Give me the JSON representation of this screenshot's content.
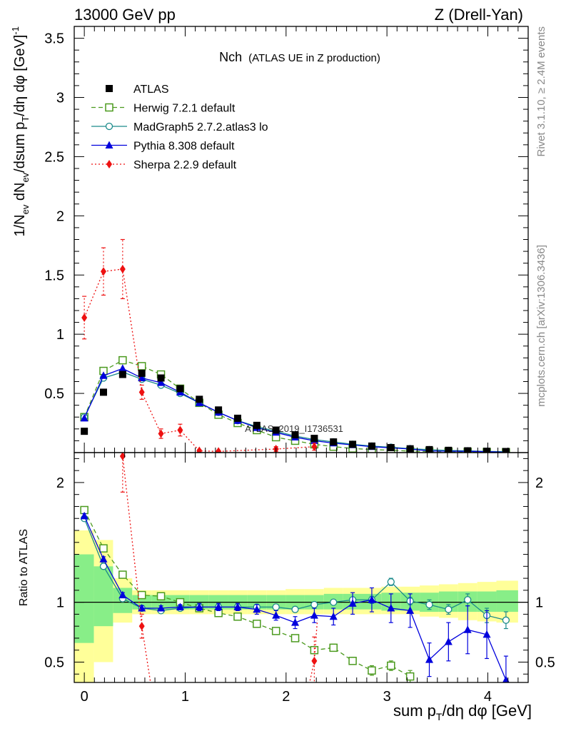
{
  "header": {
    "left": "13000 GeV pp",
    "right": "Z (Drell-Yan)"
  },
  "side_text": {
    "rivet": "Rivet 3.1.10, ≥ 2.4M events",
    "mcplots": "mcplots.cern.ch [arXiv:1306.3436]"
  },
  "watermark": "ATLAS_2019_I1736531",
  "colors": {
    "atlas": "#000000",
    "herwig": "#4b9a1e",
    "madgraph": "#1a8a8a",
    "pythia": "#0000dd",
    "sherpa": "#ee1111",
    "band_outer": "#ffff99",
    "band_inner": "#88ee88"
  },
  "chart_data": [
    {
      "type": "scatter",
      "panel": "main",
      "title": "Nch",
      "subtitle": "(ATLAS UE in Z production)",
      "ylabel": "1/N_ev dN_ev/dsum p_T/dη dφ [GeV]^-1",
      "xlabel": "sum p_T/dη dφ [GeV]",
      "xlim": [
        -0.1,
        4.4
      ],
      "ylim": [
        0,
        3.6
      ],
      "yticks": [
        "0.5",
        "1",
        "1.5",
        "2",
        "2.5",
        "3",
        "3.5"
      ],
      "xticks": [
        "0",
        "1",
        "2",
        "3",
        "4"
      ],
      "legend_position": "top-left",
      "series": [
        {
          "name": "ATLAS",
          "key": "atlas",
          "x": [
            0.0,
            0.19,
            0.38,
            0.57,
            0.76,
            0.95,
            1.14,
            1.33,
            1.52,
            1.71,
            1.9,
            2.09,
            2.28,
            2.47,
            2.66,
            2.85,
            3.04,
            3.23,
            3.42,
            3.61,
            3.8,
            3.99,
            4.18
          ],
          "y": [
            0.18,
            0.51,
            0.66,
            0.67,
            0.63,
            0.54,
            0.45,
            0.36,
            0.29,
            0.23,
            0.19,
            0.15,
            0.12,
            0.09,
            0.07,
            0.055,
            0.042,
            0.032,
            0.025,
            0.019,
            0.015,
            0.011,
            0.009
          ]
        },
        {
          "name": "Herwig 7.2.1 default",
          "key": "herwig",
          "x": [
            0.0,
            0.19,
            0.38,
            0.57,
            0.76,
            0.95,
            1.14,
            1.33,
            1.52,
            1.71,
            1.9,
            2.09,
            2.28,
            2.47,
            2.66,
            2.85,
            3.04,
            3.23,
            3.42,
            3.61,
            3.8,
            3.99,
            4.18
          ],
          "y": [
            0.3,
            0.69,
            0.78,
            0.73,
            0.66,
            0.54,
            0.42,
            0.32,
            0.25,
            0.19,
            0.13,
            0.1,
            0.07,
            0.05,
            0.035,
            0.025,
            0.02,
            0.012,
            0.01,
            0.008,
            0.006,
            0.005,
            0.004
          ]
        },
        {
          "name": "MadGraph5 2.7.2.atlas3 lo",
          "key": "madgraph",
          "x": [
            0.0,
            0.19,
            0.38,
            0.57,
            0.76,
            0.95,
            1.14,
            1.33,
            1.52,
            1.71,
            1.9,
            2.09,
            2.28,
            2.47,
            2.66,
            2.85,
            3.04,
            3.23,
            3.42,
            3.61,
            3.8,
            3.99,
            4.18
          ],
          "y": [
            0.3,
            0.63,
            0.68,
            0.62,
            0.57,
            0.5,
            0.42,
            0.34,
            0.27,
            0.22,
            0.18,
            0.14,
            0.11,
            0.09,
            0.07,
            0.055,
            0.045,
            0.033,
            0.025,
            0.018,
            0.015,
            0.01,
            0.008
          ]
        },
        {
          "name": "Pythia 8.308 default",
          "key": "pythia",
          "x": [
            0.0,
            0.19,
            0.38,
            0.57,
            0.76,
            0.95,
            1.14,
            1.33,
            1.52,
            1.71,
            1.9,
            2.09,
            2.28,
            2.47,
            2.66,
            2.85,
            3.04,
            3.23,
            3.42,
            3.61,
            3.8,
            3.99,
            4.18
          ],
          "y": [
            0.29,
            0.65,
            0.71,
            0.63,
            0.59,
            0.51,
            0.42,
            0.34,
            0.27,
            0.21,
            0.17,
            0.13,
            0.1,
            0.08,
            0.065,
            0.05,
            0.04,
            0.03,
            0.014,
            0.012,
            0.011,
            0.008,
            0.003
          ]
        },
        {
          "name": "Sherpa 2.2.9 default",
          "key": "sherpa",
          "x": [
            0.0,
            0.19,
            0.38,
            0.57,
            0.76,
            0.95,
            1.14,
            1.33,
            1.9,
            2.28
          ],
          "y": [
            1.14,
            1.53,
            1.55,
            0.51,
            0.16,
            0.19,
            0.015,
            0.01,
            0.03,
            0.05
          ],
          "yerr": [
            0.18,
            0.2,
            0.25,
            0.06,
            0.04,
            0.05,
            0.01,
            0.01,
            0.02,
            0.03
          ]
        }
      ]
    },
    {
      "type": "scatter",
      "panel": "ratio",
      "ylabel": "Ratio to ATLAS",
      "xlabel": "sum p_T/dη dφ [GeV]",
      "xlim": [
        -0.1,
        4.4
      ],
      "ylim": [
        0.33,
        2.25
      ],
      "yticks": [
        "0.5",
        "1",
        "2"
      ],
      "xticks": [
        "0",
        "1",
        "2",
        "3",
        "4"
      ],
      "band_edges": [
        -0.1,
        0.095,
        0.285,
        0.475,
        0.665,
        0.855,
        1.045,
        1.235,
        1.425,
        1.615,
        1.805,
        1.995,
        2.185,
        2.375,
        2.565,
        2.755,
        2.945,
        3.135,
        3.325,
        3.515,
        3.705,
        3.895,
        4.085,
        4.3
      ],
      "band_outer_lo": [
        0.3,
        0.5,
        0.83,
        0.9,
        0.9,
        0.9,
        0.9,
        0.9,
        0.9,
        0.9,
        0.9,
        0.9,
        0.9,
        0.9,
        0.9,
        0.9,
        0.9,
        0.9,
        0.88,
        0.87,
        0.85,
        0.84,
        0.83
      ],
      "band_outer_hi": [
        1.6,
        1.52,
        1.2,
        1.1,
        1.1,
        1.1,
        1.1,
        1.1,
        1.1,
        1.1,
        1.1,
        1.11,
        1.11,
        1.12,
        1.12,
        1.12,
        1.13,
        1.13,
        1.14,
        1.15,
        1.16,
        1.17,
        1.18
      ],
      "band_inner_lo": [
        0.66,
        0.8,
        0.91,
        0.94,
        0.94,
        0.94,
        0.94,
        0.94,
        0.94,
        0.94,
        0.94,
        0.94,
        0.94,
        0.94,
        0.94,
        0.94,
        0.93,
        0.93,
        0.92,
        0.92,
        0.92,
        0.92,
        0.92
      ],
      "band_inner_hi": [
        1.4,
        1.3,
        1.12,
        1.06,
        1.06,
        1.06,
        1.06,
        1.06,
        1.06,
        1.06,
        1.06,
        1.06,
        1.06,
        1.07,
        1.07,
        1.07,
        1.08,
        1.08,
        1.08,
        1.09,
        1.09,
        1.09,
        1.1
      ],
      "series": [
        {
          "name": "Herwig 7.2.1 default",
          "key": "herwig",
          "x": [
            0.0,
            0.19,
            0.38,
            0.57,
            0.76,
            0.95,
            1.14,
            1.33,
            1.52,
            1.71,
            1.9,
            2.09,
            2.28,
            2.47,
            2.66,
            2.85,
            3.04,
            3.23
          ],
          "y": [
            1.77,
            1.45,
            1.23,
            1.06,
            1.05,
            1.0,
            0.95,
            0.91,
            0.88,
            0.82,
            0.76,
            0.7,
            0.6,
            0.62,
            0.51,
            0.43,
            0.47,
            0.38
          ],
          "yerr": [
            0.02,
            0.02,
            0.02,
            0.02,
            0.02,
            0.02,
            0.02,
            0.02,
            0.02,
            0.02,
            0.02,
            0.02,
            0.03,
            0.03,
            0.03,
            0.04,
            0.04,
            0.05
          ]
        },
        {
          "name": "MadGraph5 2.7.2.atlas3 lo",
          "key": "madgraph",
          "x": [
            0.0,
            0.19,
            0.38,
            0.57,
            0.76,
            0.95,
            1.14,
            1.33,
            1.52,
            1.71,
            1.9,
            2.09,
            2.28,
            2.47,
            2.66,
            2.85,
            3.04,
            3.23,
            3.42,
            3.61,
            3.8,
            3.99,
            4.18
          ],
          "y": [
            1.7,
            1.3,
            1.03,
            0.95,
            0.93,
            0.95,
            0.96,
            0.96,
            0.96,
            0.96,
            0.96,
            0.94,
            0.98,
            1.0,
            1.02,
            1.02,
            1.17,
            1.01,
            0.98,
            0.94,
            1.02,
            0.89,
            0.85
          ],
          "yerr": [
            0.02,
            0.01,
            0.01,
            0.01,
            0.01,
            0.01,
            0.01,
            0.01,
            0.01,
            0.01,
            0.01,
            0.01,
            0.01,
            0.02,
            0.02,
            0.03,
            0.03,
            0.03,
            0.04,
            0.04,
            0.05,
            0.06,
            0.07
          ]
        },
        {
          "name": "Pythia 8.308 default",
          "key": "pythia",
          "x": [
            0.0,
            0.19,
            0.38,
            0.57,
            0.76,
            0.95,
            1.14,
            1.33,
            1.52,
            1.71,
            1.9,
            2.09,
            2.28,
            2.47,
            2.66,
            2.85,
            3.04,
            3.23,
            3.42,
            3.61,
            3.8,
            3.99,
            4.18
          ],
          "y": [
            1.72,
            1.36,
            1.06,
            0.95,
            0.95,
            0.96,
            0.96,
            0.96,
            0.96,
            0.94,
            0.89,
            0.83,
            0.89,
            0.88,
            0.99,
            1.02,
            0.95,
            0.93,
            0.52,
            0.67,
            0.77,
            0.73,
            0.35
          ],
          "yerr": [
            0.02,
            0.02,
            0.02,
            0.02,
            0.02,
            0.02,
            0.03,
            0.03,
            0.03,
            0.04,
            0.04,
            0.05,
            0.06,
            0.07,
            0.09,
            0.1,
            0.12,
            0.14,
            0.14,
            0.16,
            0.2,
            0.2,
            0.2
          ]
        },
        {
          "name": "Sherpa 2.2.9 default",
          "key": "sherpa",
          "x": [
            0.38,
            0.57,
            2.28
          ],
          "y": [
            2.22,
            0.8,
            0.51
          ],
          "yerr": [
            0.3,
            0.1,
            0.2
          ]
        }
      ]
    }
  ]
}
